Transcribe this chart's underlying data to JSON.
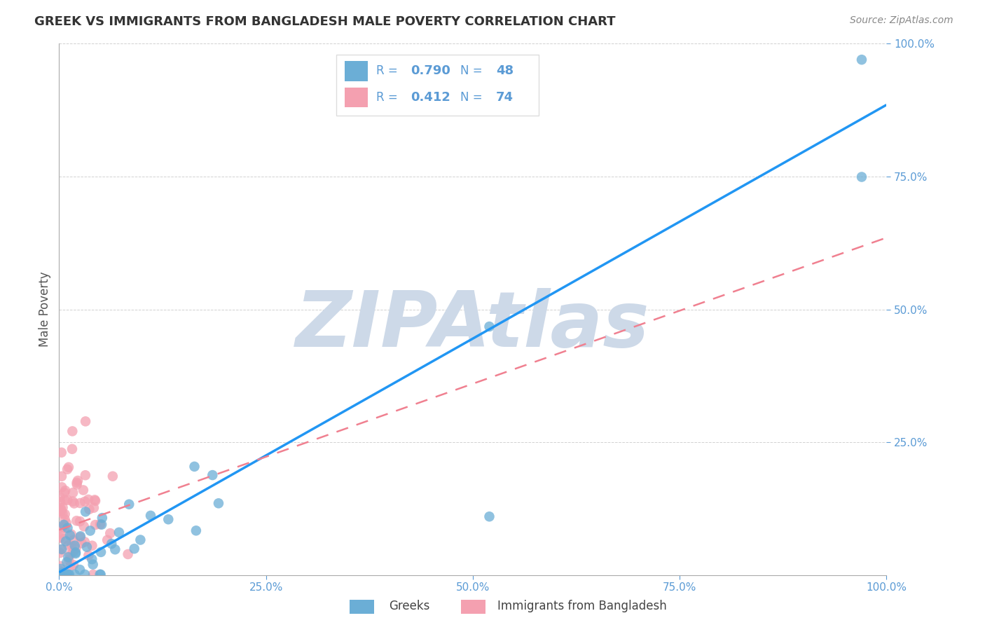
{
  "title": "GREEK VS IMMIGRANTS FROM BANGLADESH MALE POVERTY CORRELATION CHART",
  "source": "Source: ZipAtlas.com",
  "ylabel": "Male Poverty",
  "greek_color": "#6baed6",
  "bangladesh_color": "#f4a0b0",
  "greek_line_color": "#2196F3",
  "bangladesh_line_color": "#f08090",
  "greek_R": 0.79,
  "greek_N": 48,
  "bangladesh_R": 0.412,
  "bangladesh_N": 74,
  "legend_label_greek": "Greeks",
  "legend_label_bangladesh": "Immigrants from Bangladesh",
  "watermark": "ZIPAtlas",
  "watermark_color": "#cdd9e8",
  "tick_color": "#5b9bd5",
  "title_color": "#333333",
  "source_color": "#888888",
  "ylabel_color": "#555555",
  "grid_color": "#cccccc",
  "legend_box_color": "#dddddd",
  "xlim": [
    0.0,
    1.0
  ],
  "ylim": [
    0.0,
    1.0
  ],
  "greek_line_slope": 0.88,
  "greek_line_intercept": 0.005,
  "bangladesh_line_slope": 0.55,
  "bangladesh_line_intercept": 0.085
}
